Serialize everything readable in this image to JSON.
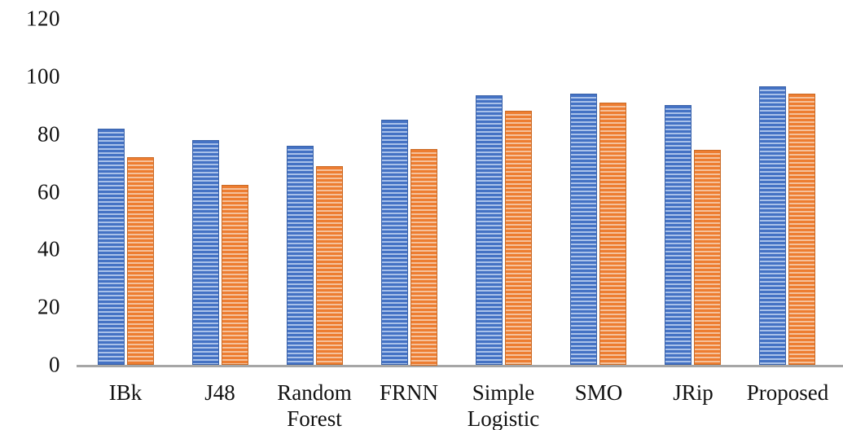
{
  "chart_data": {
    "type": "bar",
    "title": "",
    "xlabel": "",
    "ylabel": "",
    "categories": [
      "IBk",
      "J48",
      "Random Forest",
      "FRNN",
      "Simple Logistic",
      "SMO",
      "JRip",
      "Proposed"
    ],
    "series": [
      {
        "name": "blue",
        "color": "#4472C4",
        "color_light": "#A9C1E9",
        "border_color": "#3A62A9",
        "values": [
          82,
          78,
          76,
          85,
          93.5,
          94,
          90,
          96.5
        ]
      },
      {
        "name": "orange",
        "color": "#ED7D31",
        "color_light": "#F5C19B",
        "border_color": "#C96A26",
        "values": [
          72,
          62.5,
          69,
          75,
          88,
          91,
          74.5,
          94
        ]
      }
    ],
    "ylim": [
      0,
      120
    ],
    "yticks": [
      0,
      20,
      40,
      60,
      80,
      100,
      120
    ],
    "grid": false,
    "legend_position": "none",
    "fill_pattern": "horizontal-stripes",
    "axis_line_color": "#A6A6A6",
    "text_color": "#111111"
  }
}
